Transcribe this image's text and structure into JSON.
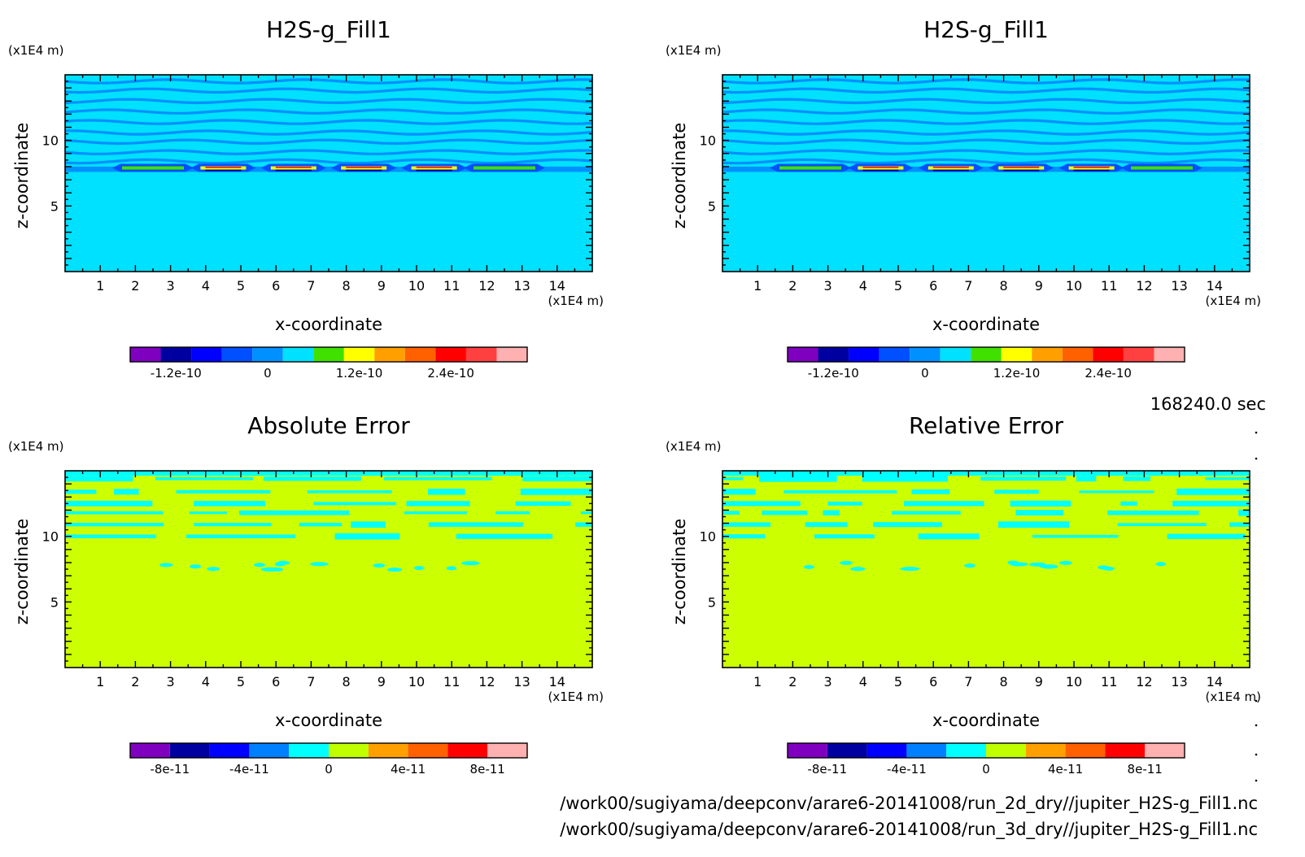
{
  "time_label": "168240.0 sec",
  "file_paths": [
    "/work00/sugiyama/deepconv/arare6-20141008/run_2d_dry//jupiter_H2S-g_Fill1.nc",
    "/work00/sugiyama/deepconv/arare6-20141008/run_3d_dry//jupiter_H2S-g_Fill1.nc"
  ],
  "chart_data": [
    {
      "type": "heatmap",
      "title": "H2S-g_Fill1",
      "xlabel": "x-coordinate",
      "ylabel": "z-coordinate",
      "x_unit": "(x1E4 m)",
      "z_unit": "(x1E4 m)",
      "xlim": [
        0,
        15
      ],
      "zlim": [
        0,
        15
      ],
      "x_ticks": [
        1,
        2,
        3,
        4,
        5,
        6,
        7,
        8,
        9,
        10,
        11,
        12,
        13,
        14
      ],
      "z_ticks": [
        5,
        10
      ],
      "background_value": "0",
      "colorbar": {
        "colors": [
          "#8000c0",
          "#0000a0",
          "#0000ff",
          "#0050ff",
          "#0090ff",
          "#00e0ff",
          "#40e000",
          "#ffff00",
          "#ffa000",
          "#ff6000",
          "#ff0000",
          "#ff4040",
          "#ffb0b0"
        ],
        "tick_labels": [
          "-1.2e-10",
          "0",
          "1.2e-10",
          "2.4e-10"
        ],
        "tick_values": [
          -1.2e-10,
          0,
          1.2e-10,
          2.4e-10
        ],
        "min": -1.8e-10,
        "max": 3.4e-10
      },
      "features": {
        "stripe_layers_z": [
          14.5,
          13.8,
          13.0,
          12.2,
          11.4,
          10.6,
          9.9,
          9.1,
          8.4
        ],
        "blob_x_centers": [
          2.5,
          4.5,
          6.5,
          8.5,
          10.5,
          12.5
        ],
        "blob_z": 7.9
      }
    },
    {
      "type": "heatmap",
      "title": "H2S-g_Fill1",
      "xlabel": "x-coordinate",
      "ylabel": "z-coordinate",
      "x_unit": "(x1E4 m)",
      "z_unit": "(x1E4 m)",
      "xlim": [
        0,
        15
      ],
      "zlim": [
        0,
        15
      ],
      "x_ticks": [
        1,
        2,
        3,
        4,
        5,
        6,
        7,
        8,
        9,
        10,
        11,
        12,
        13,
        14
      ],
      "z_ticks": [
        5,
        10
      ],
      "background_value": "0",
      "colorbar": {
        "colors": [
          "#8000c0",
          "#0000a0",
          "#0000ff",
          "#0050ff",
          "#0090ff",
          "#00e0ff",
          "#40e000",
          "#ffff00",
          "#ffa000",
          "#ff6000",
          "#ff0000",
          "#ff4040",
          "#ffb0b0"
        ],
        "tick_labels": [
          "-1.2e-10",
          "0",
          "1.2e-10",
          "2.4e-10"
        ],
        "tick_values": [
          -1.2e-10,
          0,
          1.2e-10,
          2.4e-10
        ],
        "min": -1.8e-10,
        "max": 3.4e-10
      },
      "features": {
        "stripe_layers_z": [
          14.5,
          13.8,
          13.0,
          12.2,
          11.4,
          10.6,
          9.9,
          9.1,
          8.4
        ],
        "blob_x_centers": [
          2.5,
          4.5,
          6.5,
          8.5,
          10.5,
          12.5
        ],
        "blob_z": 7.9
      }
    },
    {
      "type": "heatmap",
      "title": "Absolute Error",
      "xlabel": "x-coordinate",
      "ylabel": "z-coordinate",
      "x_unit": "(x1E4 m)",
      "z_unit": "(x1E4 m)",
      "xlim": [
        0,
        15
      ],
      "zlim": [
        0,
        15
      ],
      "x_ticks": [
        1,
        2,
        3,
        4,
        5,
        6,
        7,
        8,
        9,
        10,
        11,
        12,
        13,
        14
      ],
      "z_ticks": [
        5,
        10
      ],
      "background_value": "0 to 4e-11",
      "colorbar": {
        "colors": [
          "#8000c0",
          "#0000a0",
          "#0000ff",
          "#0080ff",
          "#00ffff",
          "#c0ff00",
          "#ffa000",
          "#ff6000",
          "#ff0000",
          "#ffb0b0"
        ],
        "tick_labels": [
          "-8e-11",
          "-4e-11",
          "0",
          "4e-11",
          "8e-11"
        ],
        "tick_values": [
          -8e-11,
          -4e-11,
          0,
          4e-11,
          8e-11
        ],
        "min": -1e-10,
        "max": 1e-10
      },
      "features": {
        "patch_rows_z": [
          14.4,
          13.4,
          12.5,
          11.8,
          10.9,
          10.0
        ],
        "small_spots_z": 7.7
      }
    },
    {
      "type": "heatmap",
      "title": "Relative Error",
      "xlabel": "x-coordinate",
      "ylabel": "z-coordinate",
      "x_unit": "(x1E4 m)",
      "z_unit": "(x1E4 m)",
      "xlim": [
        0,
        15
      ],
      "zlim": [
        0,
        15
      ],
      "x_ticks": [
        1,
        2,
        3,
        4,
        5,
        6,
        7,
        8,
        9,
        10,
        11,
        12,
        13,
        14
      ],
      "z_ticks": [
        5,
        10
      ],
      "background_value": "0 to 4e-11",
      "colorbar": {
        "colors": [
          "#8000c0",
          "#0000a0",
          "#0000ff",
          "#0080ff",
          "#00ffff",
          "#c0ff00",
          "#ffa000",
          "#ff6000",
          "#ff0000",
          "#ffb0b0"
        ],
        "tick_labels": [
          "-8e-11",
          "-4e-11",
          "0",
          "4e-11",
          "8e-11"
        ],
        "tick_values": [
          -8e-11,
          -4e-11,
          0,
          4e-11,
          8e-11
        ],
        "min": -1e-10,
        "max": 1e-10
      },
      "features": {
        "patch_rows_z": [
          14.4,
          13.4,
          12.5,
          11.8,
          10.9,
          10.0
        ],
        "small_spots_z": 7.7
      }
    }
  ]
}
